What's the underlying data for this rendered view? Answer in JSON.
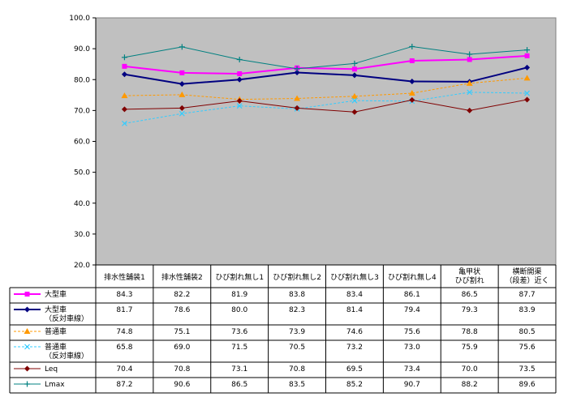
{
  "chart_data": {
    "type": "line",
    "title": "",
    "xlabel": "",
    "ylabel": "",
    "ylim": [
      20.0,
      100.0
    ],
    "y_ticks": [
      "20.0",
      "30.0",
      "40.0",
      "50.0",
      "60.0",
      "70.0",
      "80.0",
      "90.0",
      "100.0"
    ],
    "grid": false,
    "plot_background": "#c0c0c0",
    "legend_placement": "data-table-left",
    "categories": [
      [
        "排水性舗装1"
      ],
      [
        "排水性舗装2"
      ],
      [
        "ひび割れ無し1"
      ],
      [
        "ひび割れ無し2"
      ],
      [
        "ひび割れ無し3"
      ],
      [
        "ひび割れ無し4"
      ],
      [
        "亀甲状",
        "ひび割れ"
      ],
      [
        "横断開渠",
        "（段差）近く"
      ]
    ],
    "series": [
      {
        "name": [
          "大型車"
        ],
        "color": "#ff00ff",
        "dash": "",
        "marker": "square",
        "width": 2,
        "values": [
          84.3,
          82.2,
          81.9,
          83.8,
          83.4,
          86.1,
          86.5,
          87.7
        ],
        "labels": [
          "84.3",
          "82.2",
          "81.9",
          "83.8",
          "83.4",
          "86.1",
          "86.5",
          "87.7"
        ]
      },
      {
        "name": [
          "大型車",
          "（反対車線）"
        ],
        "color": "#000080",
        "dash": "",
        "marker": "diamond",
        "width": 2,
        "values": [
          81.7,
          78.6,
          80.0,
          82.3,
          81.4,
          79.4,
          79.3,
          83.9
        ],
        "labels": [
          "81.7",
          "78.6",
          "80.0",
          "82.3",
          "81.4",
          "79.4",
          "79.3",
          "83.9"
        ]
      },
      {
        "name": [
          "普通車"
        ],
        "color": "#ff9900",
        "dash": "3,2",
        "marker": "triangle",
        "width": 1,
        "values": [
          74.8,
          75.1,
          73.6,
          73.9,
          74.6,
          75.6,
          78.8,
          80.5
        ],
        "labels": [
          "74.8",
          "75.1",
          "73.6",
          "73.9",
          "74.6",
          "75.6",
          "78.8",
          "80.5"
        ]
      },
      {
        "name": [
          "普通車",
          "（反対車線）"
        ],
        "color": "#33ccff",
        "dash": "3,2",
        "marker": "x",
        "width": 1,
        "values": [
          65.8,
          69.0,
          71.5,
          70.5,
          73.2,
          73.0,
          75.9,
          75.6
        ],
        "labels": [
          "65.8",
          "69.0",
          "71.5",
          "70.5",
          "73.2",
          "73.0",
          "75.9",
          "75.6"
        ]
      },
      {
        "name": [
          "Leq"
        ],
        "color": "#800000",
        "dash": "",
        "marker": "diamond",
        "width": 1,
        "values": [
          70.4,
          70.8,
          73.1,
          70.8,
          69.5,
          73.4,
          70.0,
          73.5
        ],
        "labels": [
          "70.4",
          "70.8",
          "73.1",
          "70.8",
          "69.5",
          "73.4",
          "70.0",
          "73.5"
        ]
      },
      {
        "name": [
          "Lmax"
        ],
        "color": "#008080",
        "dash": "",
        "marker": "plus",
        "width": 1,
        "values": [
          87.2,
          90.6,
          86.5,
          83.5,
          85.2,
          90.7,
          88.2,
          89.6
        ],
        "labels": [
          "87.2",
          "90.6",
          "86.5",
          "83.5",
          "85.2",
          "90.7",
          "88.2",
          "89.6"
        ]
      }
    ]
  }
}
